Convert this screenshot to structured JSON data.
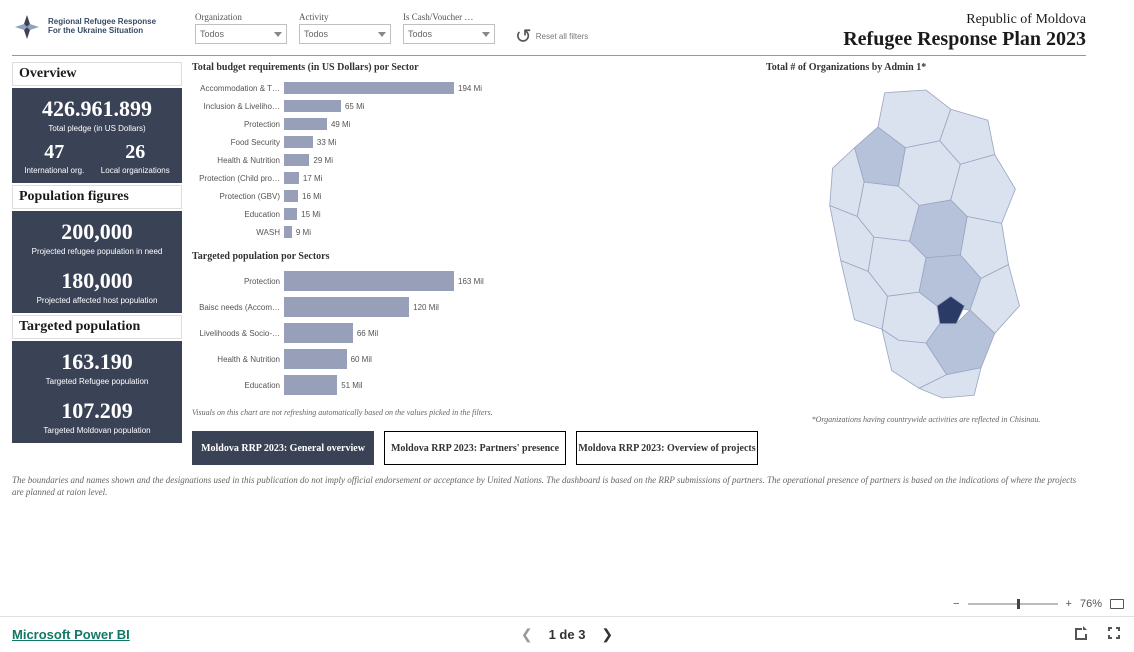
{
  "header": {
    "logo_line1": "Regional Refugee Response",
    "logo_line2": "For the Ukraine Situation",
    "country": "Republic of Moldova",
    "title": "Refugee Response Plan 2023",
    "reset_label": "Reset all filters"
  },
  "filters": [
    {
      "label": "Organization",
      "value": "Todos"
    },
    {
      "label": "Activity",
      "value": "Todos"
    },
    {
      "label": "Is Cash/Voucher …",
      "value": "Todos"
    }
  ],
  "sidebar": {
    "overview_header": "Overview",
    "pledge_value": "426.961.899",
    "pledge_label": "Total pledge (in US Dollars)",
    "intl_value": "47",
    "intl_label": "International org.",
    "local_value": "26",
    "local_label": "Local organizations",
    "pop_header": "Population figures",
    "pop_refugee_value": "200,000",
    "pop_refugee_label": "Projected refugee population in need",
    "pop_host_value": "180,000",
    "pop_host_label": "Projected affected host population",
    "target_header": "Targeted population",
    "target_refugee_value": "163.190",
    "target_refugee_label": "Targeted Refugee population",
    "target_moldovan_value": "107.209",
    "target_moldovan_label": "Targeted Moldovan population"
  },
  "charts": {
    "budget_title": "Total budget requirements (in US Dollars) por Sector",
    "budget_bar_color": "#97a0b8",
    "budget_max": 194,
    "budget": [
      {
        "label": "Accommodation & T…",
        "value": 194,
        "text": "194 Mi"
      },
      {
        "label": "Inclusion & Liveliho…",
        "value": 65,
        "text": "65 Mi"
      },
      {
        "label": "Protection",
        "value": 49,
        "text": "49 Mi"
      },
      {
        "label": "Food Security",
        "value": 33,
        "text": "33 Mi"
      },
      {
        "label": "Health & Nutrition",
        "value": 29,
        "text": "29 Mi"
      },
      {
        "label": "Protection (Child pro…",
        "value": 17,
        "text": "17 Mi"
      },
      {
        "label": "Protection (GBV)",
        "value": 16,
        "text": "16 Mi"
      },
      {
        "label": "Education",
        "value": 15,
        "text": "15 Mi"
      },
      {
        "label": "WASH",
        "value": 9,
        "text": "9 Mi"
      }
    ],
    "pop_title": "Targeted population por Sectors",
    "pop_bar_color": "#97a0b8",
    "pop_max": 163,
    "population": [
      {
        "label": "Protection",
        "value": 163,
        "text": "163 Mil"
      },
      {
        "label": "Baisc needs (Accom…",
        "value": 120,
        "text": "120 Mil"
      },
      {
        "label": "Livelihoods & Socio-…",
        "value": 66,
        "text": "66 Mil"
      },
      {
        "label": "Health & Nutrition",
        "value": 60,
        "text": "60 Mil"
      },
      {
        "label": "Education",
        "value": 51,
        "text": "51 Mil"
      }
    ],
    "chart_note": "Visuals on this chart are not refreshing automatically based on the values picked in the filters."
  },
  "map": {
    "title": "Total # of Organizations by Admin 1*",
    "note": "*Organizations having countrywide activities are reflected in Chisinau.",
    "colors": {
      "light": "#dbe2ef",
      "mid": "#b6c1da",
      "dark": "#2a3b66",
      "stroke": "#9aa6c2"
    }
  },
  "tabs": [
    {
      "label": "Moldova RRP 2023: General overview",
      "active": true
    },
    {
      "label": "Moldova RRP 2023: Partners' presence",
      "active": false
    },
    {
      "label": "Moldova RRP 2023: Overview of projects",
      "active": false
    }
  ],
  "disclaimer": "The boundaries and names shown and the designations used in this publication do not imply official endorsement or acceptance by United Nations. The dashboard is based on the RRP submissions of partners. The operational presence of partners is based on the indications of where the projects are planned at raion level.",
  "zoom": {
    "minus": "−",
    "plus": "+",
    "value": "76%",
    "thumb_pct": 55
  },
  "footer": {
    "powerbi": "Microsoft Power BI",
    "page_text": "1 de 3"
  }
}
